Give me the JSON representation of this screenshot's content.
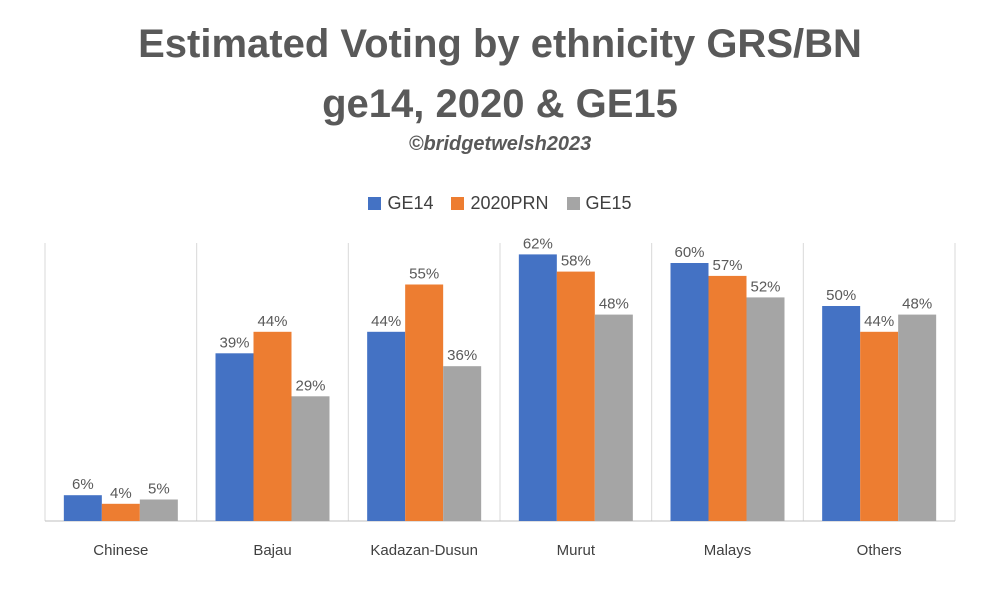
{
  "title_line1": "Estimated Voting by ethnicity GRS/BN",
  "title_line2": "ge14, 2020 & GE15",
  "subtitle": "©bridgetwelsh2023",
  "chart_data": {
    "type": "bar",
    "title": "Estimated Voting by ethnicity GRS/BN ge14, 2020 & GE15",
    "subtitle": "©bridgetwelsh2023",
    "categories": [
      "Chinese",
      "Bajau",
      "Kadazan-Dusun",
      "Murut",
      "Malays",
      "Others"
    ],
    "series": [
      {
        "name": "GE14",
        "color": "#4472C4",
        "values": [
          6,
          39,
          44,
          62,
          60,
          50
        ],
        "labels": [
          "6%",
          "39%",
          "44%",
          "62%",
          "60%",
          "50%"
        ]
      },
      {
        "name": "2020PRN",
        "color": "#ED7D31",
        "values": [
          4,
          44,
          55,
          58,
          57,
          44
        ],
        "labels": [
          "4%",
          "44%",
          "55%",
          "58%",
          "57%",
          "44%"
        ]
      },
      {
        "name": "GE15",
        "color": "#A5A5A5",
        "values": [
          5,
          29,
          36,
          48,
          52,
          48
        ],
        "labels": [
          "5%",
          "29%",
          "36%",
          "48%",
          "52%",
          "48%"
        ]
      }
    ],
    "ylim": [
      0,
      70
    ],
    "value_unit": "%",
    "legend_position": "top-center",
    "grid": false,
    "category_separators": true
  }
}
